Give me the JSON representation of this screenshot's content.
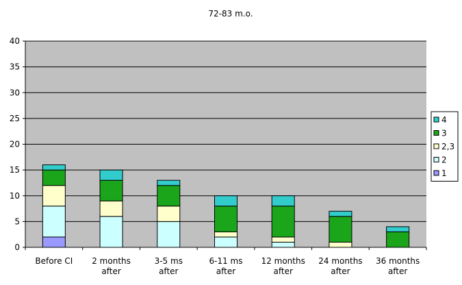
{
  "chart_data": {
    "type": "bar",
    "stacked": true,
    "title": "72-83 m.o.",
    "categories": [
      [
        "Before CI"
      ],
      [
        "2 months",
        "after"
      ],
      [
        "3-5 ms",
        "after"
      ],
      [
        "6-11 ms",
        "after"
      ],
      [
        "12 months",
        "after"
      ],
      [
        "24 months",
        "after"
      ],
      [
        "36 months",
        "after"
      ]
    ],
    "ylim": [
      0,
      40
    ],
    "yticks": [
      0,
      5,
      10,
      15,
      20,
      25,
      30,
      35,
      40
    ],
    "grid": true,
    "legend_position": "right",
    "colors": {
      "plot_background": "#c0c0c0",
      "gridline": "#000000"
    },
    "series": [
      {
        "name": "1",
        "color": "#9999ff",
        "values": [
          2,
          0,
          0,
          0,
          0,
          0,
          0
        ]
      },
      {
        "name": "2",
        "color": "#ccffff",
        "values": [
          6,
          6,
          5,
          2,
          1,
          0,
          0
        ]
      },
      {
        "name": "2,3",
        "color": "#ffffcc",
        "values": [
          4,
          3,
          3,
          1,
          1,
          1,
          0
        ]
      },
      {
        "name": "3",
        "color": "#1aa51a",
        "values": [
          3,
          4,
          4,
          5,
          6,
          5,
          3
        ]
      },
      {
        "name": "4",
        "color": "#33cccc",
        "values": [
          1,
          2,
          1,
          2,
          2,
          1,
          1
        ]
      }
    ]
  }
}
